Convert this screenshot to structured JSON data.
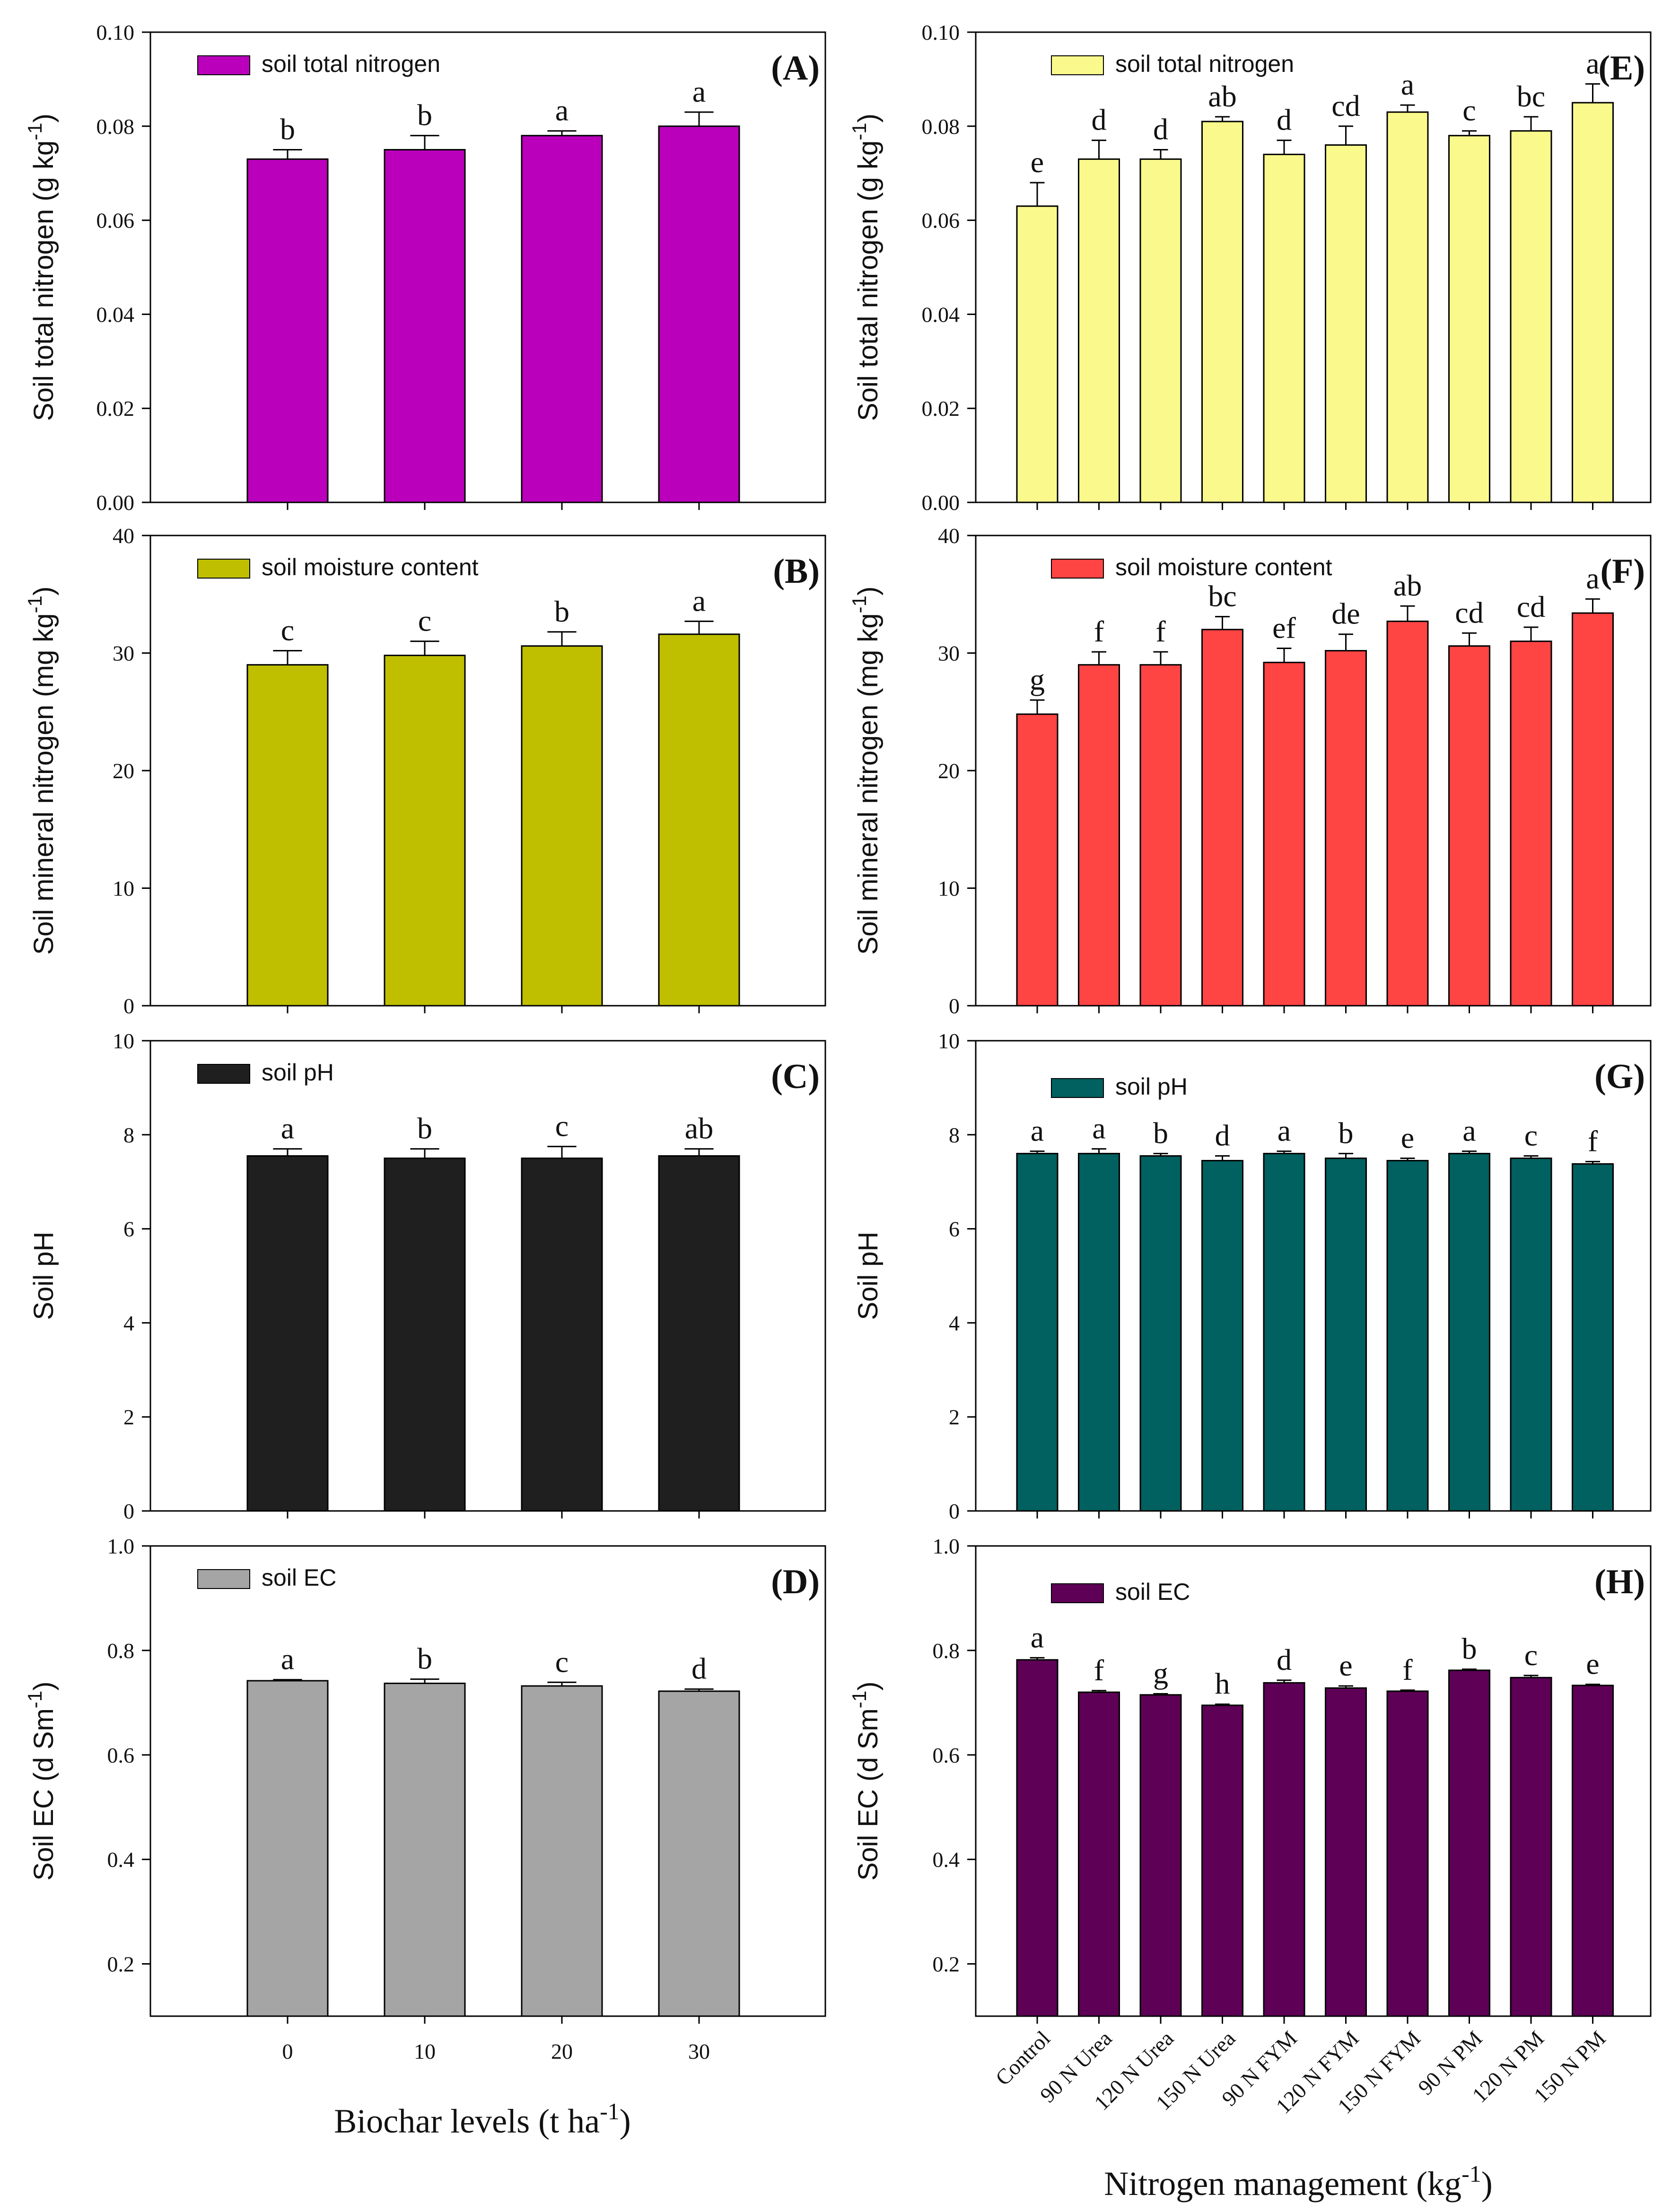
{
  "charts": [
    {
      "panel": "(A)",
      "type": "bar",
      "legend": "soil total nitrogen",
      "ylabel": "Soil total nitrogen (g kg",
      "ylabel_sup": "-1",
      "ylabel_tail": ")",
      "ylim": [
        0,
        0.1
      ],
      "yticks": [
        "0.00",
        "0.02",
        "0.04",
        "0.06",
        "0.08",
        "0.10"
      ],
      "categories": [
        "0",
        "10",
        "20",
        "30"
      ],
      "values": [
        0.073,
        0.075,
        0.078,
        0.08
      ],
      "errors": [
        0.002,
        0.003,
        0.001,
        0.003
      ],
      "letters": [
        "b",
        "b",
        "a",
        "a"
      ],
      "color": "#bb00bb"
    },
    {
      "panel": "(B)",
      "type": "bar",
      "legend": "soil moisture content",
      "ylabel": "Soil mineral nitrogen (mg kg",
      "ylabel_sup": "-1",
      "ylabel_tail": ")",
      "ylim": [
        0,
        40
      ],
      "yticks": [
        "0",
        "10",
        "20",
        "30",
        "40"
      ],
      "categories": [
        "0",
        "10",
        "20",
        "30"
      ],
      "values": [
        29.0,
        29.8,
        30.6,
        31.6
      ],
      "errors": [
        1.2,
        1.2,
        1.2,
        1.1
      ],
      "letters": [
        "c",
        "c",
        "b",
        "a"
      ],
      "color": "#bfbf00"
    },
    {
      "panel": "(C)",
      "type": "bar",
      "legend": "soil pH",
      "ylabel": "Soil pH",
      "ylabel_sup": "",
      "ylabel_tail": "",
      "ylim": [
        0,
        10
      ],
      "yticks": [
        "0",
        "2",
        "4",
        "6",
        "8",
        "10"
      ],
      "categories": [
        "0",
        "10",
        "20",
        "30"
      ],
      "values": [
        7.55,
        7.5,
        7.5,
        7.55
      ],
      "errors": [
        0.15,
        0.2,
        0.25,
        0.15
      ],
      "letters": [
        "a",
        "b",
        "c",
        "ab"
      ],
      "color": "#1f1f1f"
    },
    {
      "panel": "(D)",
      "type": "bar",
      "legend": "soil EC",
      "ylabel": "Soil EC (d Sm",
      "ylabel_sup": "-1",
      "ylabel_tail": ")",
      "ylim": [
        0.1,
        1.0
      ],
      "yticks": [
        "0.2",
        "0.4",
        "0.6",
        "0.8",
        "1.0"
      ],
      "categories": [
        "0",
        "10",
        "20",
        "30"
      ],
      "values": [
        0.742,
        0.737,
        0.732,
        0.722
      ],
      "errors": [
        0.002,
        0.008,
        0.007,
        0.004
      ],
      "letters": [
        "a",
        "b",
        "c",
        "d"
      ],
      "color": "#a5a5a5"
    },
    {
      "panel": "(E)",
      "type": "bar",
      "legend": "soil total nitrogen",
      "ylabel": "Soil total nitrogen (g kg",
      "ylabel_sup": "-1",
      "ylabel_tail": ")",
      "ylim": [
        0,
        0.1
      ],
      "yticks": [
        "0.00",
        "0.02",
        "0.04",
        "0.06",
        "0.08",
        "0.10"
      ],
      "categories": [
        "Control",
        "90 N Urea",
        "120 N Urea",
        "150 N Urea",
        "90 N FYM",
        "120 N FYM",
        "150 N FYM",
        "90 N PM",
        "120 N PM",
        "150 N PM"
      ],
      "values": [
        0.063,
        0.073,
        0.073,
        0.081,
        0.074,
        0.076,
        0.083,
        0.078,
        0.079,
        0.085
      ],
      "errors": [
        0.005,
        0.004,
        0.002,
        0.001,
        0.003,
        0.004,
        0.0015,
        0.001,
        0.003,
        0.004
      ],
      "letters": [
        "e",
        "d",
        "d",
        "ab",
        "d",
        "cd",
        "a",
        "c",
        "bc",
        "a"
      ],
      "color": "#fafa8c"
    },
    {
      "panel": "(F)",
      "type": "bar",
      "legend": "soil moisture content",
      "ylabel": "Soil mineral nitrogen (mg kg",
      "ylabel_sup": "-1",
      "ylabel_tail": ")",
      "ylim": [
        0,
        40
      ],
      "yticks": [
        "0",
        "10",
        "20",
        "30",
        "40"
      ],
      "categories": [
        "Control",
        "90 N Urea",
        "120 N Urea",
        "150 N Urea",
        "90 N FYM",
        "120 N FYM",
        "150 N FYM",
        "90 N PM",
        "120 N PM",
        "150 N PM"
      ],
      "values": [
        24.8,
        29.0,
        29.0,
        32.0,
        29.2,
        30.2,
        32.7,
        30.6,
        31.0,
        33.4
      ],
      "errors": [
        1.2,
        1.1,
        1.1,
        1.1,
        1.2,
        1.4,
        1.3,
        1.1,
        1.2,
        1.2
      ],
      "letters": [
        "g",
        "f",
        "f",
        "bc",
        "ef",
        "de",
        "ab",
        "cd",
        "cd",
        "a"
      ],
      "color": "#ff4444"
    },
    {
      "panel": "(G)",
      "type": "bar",
      "legend": "soil pH",
      "ylabel": "Soil pH",
      "ylabel_sup": "",
      "ylabel_tail": "",
      "ylim": [
        0,
        10
      ],
      "yticks": [
        "0",
        "2",
        "4",
        "6",
        "8",
        "10"
      ],
      "categories": [
        "Control",
        "90 N Urea",
        "120 N Urea",
        "150 N Urea",
        "90 N FYM",
        "120 N FYM",
        "150 N FYM",
        "90 N PM",
        "120 N PM",
        "150 N PM"
      ],
      "values": [
        7.6,
        7.6,
        7.55,
        7.45,
        7.6,
        7.5,
        7.45,
        7.6,
        7.5,
        7.38
      ],
      "errors": [
        0.05,
        0.1,
        0.05,
        0.1,
        0.05,
        0.1,
        0.05,
        0.05,
        0.05,
        0.05
      ],
      "letters": [
        "a",
        "a",
        "b",
        "d",
        "a",
        "b",
        "e",
        "a",
        "c",
        "f"
      ],
      "color": "#016060"
    },
    {
      "panel": "(H)",
      "type": "bar",
      "legend": "soil EC",
      "ylabel": "Soil EC (d Sm",
      "ylabel_sup": "-1",
      "ylabel_tail": ")",
      "ylim": [
        0.1,
        1.0
      ],
      "yticks": [
        "0.2",
        "0.4",
        "0.6",
        "0.8",
        "1.0"
      ],
      "categories": [
        "Control",
        "90 N Urea",
        "120 N Urea",
        "150 N Urea",
        "90 N FYM",
        "120 N FYM",
        "150 N FYM",
        "90 N PM",
        "120 N PM",
        "150 N PM"
      ],
      "values": [
        0.782,
        0.72,
        0.715,
        0.695,
        0.738,
        0.728,
        0.722,
        0.762,
        0.748,
        0.733
      ],
      "errors": [
        0.004,
        0.003,
        0.002,
        0.002,
        0.005,
        0.004,
        0.002,
        0.002,
        0.004,
        0.002
      ],
      "letters": [
        "a",
        "f",
        "g",
        "h",
        "d",
        "e",
        "f",
        "b",
        "c",
        "e"
      ],
      "color": "#5e0056"
    }
  ],
  "xlabel_left": "Biochar levels (t ha",
  "xlabel_left_sup": "-1",
  "xlabel_left_tail": ")",
  "xlabel_right": "Nitrogen management (kg",
  "xlabel_right_sup": "-1",
  "xlabel_right_tail": ")"
}
